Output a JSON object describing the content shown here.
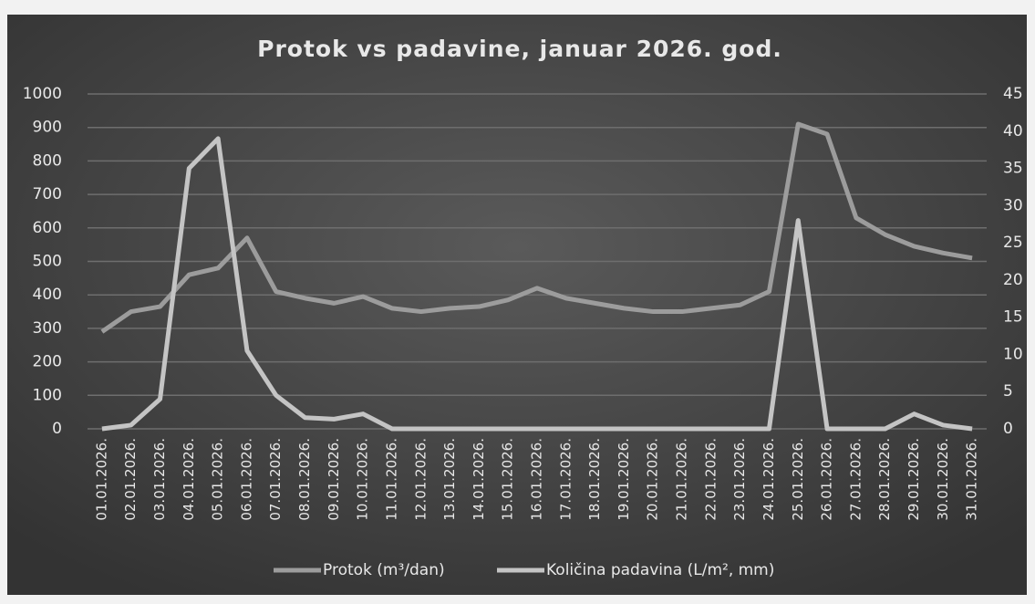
{
  "chart_data": {
    "type": "line",
    "title": "Protok vs padavine, januar 2026. god.",
    "categories": [
      "01.01.2026.",
      "02.01.2026.",
      "03.01.2026.",
      "04.01.2026.",
      "05.01.2026.",
      "06.01.2026.",
      "07.01.2026.",
      "08.01.2026.",
      "09.01.2026.",
      "10.01.2026.",
      "11.01.2026.",
      "12.01.2026.",
      "13.01.2026.",
      "14.01.2026.",
      "15.01.2026.",
      "16.01.2026.",
      "17.01.2026.",
      "18.01.2026.",
      "19.01.2026.",
      "20.01.2026.",
      "21.01.2026.",
      "22.01.2026.",
      "23.01.2026.",
      "24.01.2026.",
      "25.01.2026.",
      "26.01.2026.",
      "27.01.2026.",
      "28.01.2026.",
      "29.01.2026.",
      "30.01.2026.",
      "31.01.2026."
    ],
    "series": [
      {
        "name": "Protok (m³/dan)",
        "color": "#9c9c9c",
        "axis": "y",
        "values": [
          290,
          350,
          365,
          460,
          480,
          570,
          410,
          390,
          375,
          395,
          360,
          350,
          360,
          365,
          385,
          420,
          390,
          375,
          360,
          350,
          350,
          360,
          370,
          410,
          910,
          880,
          630,
          580,
          545,
          525,
          510
        ]
      },
      {
        "name": "Količina padavina (L/m², mm)",
        "color": "#c4c4c4",
        "axis": "y2",
        "values": [
          0,
          0.5,
          4,
          35,
          39,
          10.5,
          4.5,
          1.5,
          1.3,
          2,
          0,
          0,
          0,
          0,
          0,
          0,
          0,
          0,
          0,
          0,
          0,
          0,
          0,
          0,
          28,
          0,
          0,
          0,
          2,
          0.5,
          0
        ]
      }
    ],
    "ylim": [
      0,
      1000
    ],
    "yticks": [
      0,
      100,
      200,
      300,
      400,
      500,
      600,
      700,
      800,
      900,
      1000
    ],
    "y2lim": [
      0,
      45
    ],
    "y2ticks": [
      0,
      5,
      10,
      15,
      20,
      25,
      30,
      35,
      40,
      45
    ],
    "grid": true
  }
}
